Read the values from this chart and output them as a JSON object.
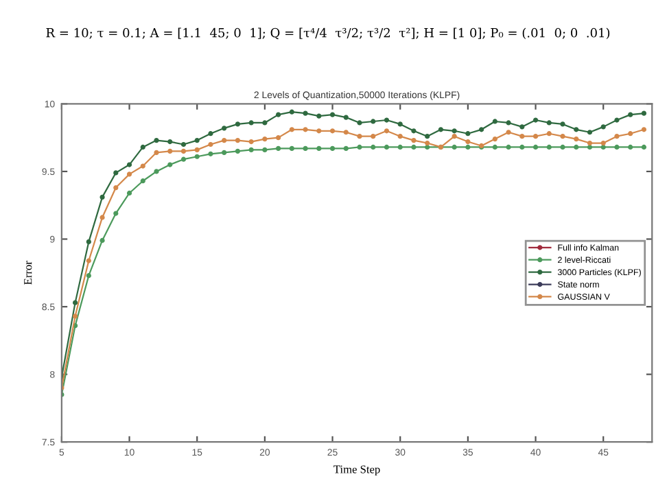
{
  "chart_data": {
    "type": "line",
    "title": "2 Levels of Quantization,50000 Iterations (KLPF)",
    "xlabel": "Time Step",
    "ylabel": "Error",
    "annotations": [
      "R = 10; τ = 0.1; A = [1.1  45; 0  1]; Q = [τ⁴/4  τ³/2; τ³/2  τ²]; H = [1 0]; P₀ = (.01  0; 0  .01)"
    ],
    "x": [
      5,
      6,
      7,
      8,
      9,
      10,
      11,
      12,
      13,
      14,
      15,
      16,
      17,
      18,
      19,
      20,
      21,
      22,
      23,
      24,
      25,
      26,
      27,
      28,
      29,
      30,
      31,
      32,
      33,
      34,
      35,
      36,
      37,
      38,
      39,
      40,
      41,
      42,
      43,
      44,
      45,
      46,
      47,
      48
    ],
    "series": [
      {
        "name": "Full info Kalman",
        "color": "#a02a3c",
        "values": [
          null,
          null,
          null,
          null,
          null,
          null,
          null,
          null,
          null,
          null,
          null,
          null,
          null,
          null,
          null,
          null,
          null,
          null,
          null,
          null,
          null,
          null,
          null,
          null,
          null,
          null,
          null,
          null,
          null,
          null,
          null,
          null,
          null,
          null,
          null,
          null,
          null,
          null,
          null,
          null,
          null,
          null,
          null,
          null
        ]
      },
      {
        "name": "2 level-Riccati",
        "color": "#4c9a5c",
        "values": [
          7.85,
          8.36,
          8.73,
          8.99,
          9.19,
          9.34,
          9.43,
          9.5,
          9.55,
          9.59,
          9.61,
          9.63,
          9.64,
          9.65,
          9.66,
          9.66,
          9.67,
          9.67,
          9.67,
          9.67,
          9.67,
          9.67,
          9.68,
          9.68,
          9.68,
          9.68,
          9.68,
          9.68,
          9.68,
          9.68,
          9.68,
          9.68,
          9.68,
          9.68,
          9.68,
          9.68,
          9.68,
          9.68,
          9.68,
          9.68,
          9.68,
          9.68,
          9.68,
          9.68
        ]
      },
      {
        "name": "3000 Particles (KLPF)",
        "color": "#2f6a40",
        "values": [
          7.98,
          8.53,
          8.98,
          9.31,
          9.49,
          9.55,
          9.68,
          9.73,
          9.72,
          9.7,
          9.73,
          9.78,
          9.82,
          9.85,
          9.86,
          9.86,
          9.92,
          9.94,
          9.93,
          9.91,
          9.92,
          9.9,
          9.86,
          9.87,
          9.88,
          9.85,
          9.8,
          9.76,
          9.81,
          9.8,
          9.78,
          9.81,
          9.87,
          9.86,
          9.83,
          9.88,
          9.86,
          9.85,
          9.81,
          9.79,
          9.83,
          9.88,
          9.92,
          9.93
        ]
      },
      {
        "name": "State norm",
        "color": "#3c3c5a",
        "values": [
          null,
          null,
          null,
          null,
          null,
          null,
          null,
          null,
          null,
          null,
          null,
          null,
          null,
          null,
          null,
          null,
          null,
          null,
          null,
          null,
          null,
          null,
          null,
          null,
          null,
          null,
          null,
          null,
          null,
          null,
          null,
          null,
          null,
          null,
          null,
          null,
          null,
          null,
          null,
          null,
          null,
          null,
          null,
          null
        ]
      },
      {
        "name": "GAUSSIAN V",
        "color": "#d4884a",
        "values": [
          7.9,
          8.43,
          8.84,
          9.16,
          9.38,
          9.48,
          9.54,
          9.64,
          9.65,
          9.65,
          9.66,
          9.7,
          9.73,
          9.73,
          9.72,
          9.74,
          9.75,
          9.81,
          9.81,
          9.8,
          9.8,
          9.79,
          9.76,
          9.76,
          9.8,
          9.76,
          9.73,
          9.71,
          9.68,
          9.76,
          9.72,
          9.69,
          9.74,
          9.79,
          9.76,
          9.76,
          9.78,
          9.76,
          9.74,
          9.71,
          9.71,
          9.76,
          9.78,
          9.81
        ]
      }
    ],
    "xlim": [
      5,
      48.6
    ],
    "xticks": [
      5,
      10,
      15,
      20,
      25,
      30,
      35,
      40,
      45
    ],
    "ylim": [
      7.5,
      10
    ],
    "yticks": [
      7.5,
      8,
      8.5,
      9,
      9.5,
      10
    ],
    "grid": false,
    "legend": "right",
    "marker": "circle",
    "line_style": "solid"
  }
}
